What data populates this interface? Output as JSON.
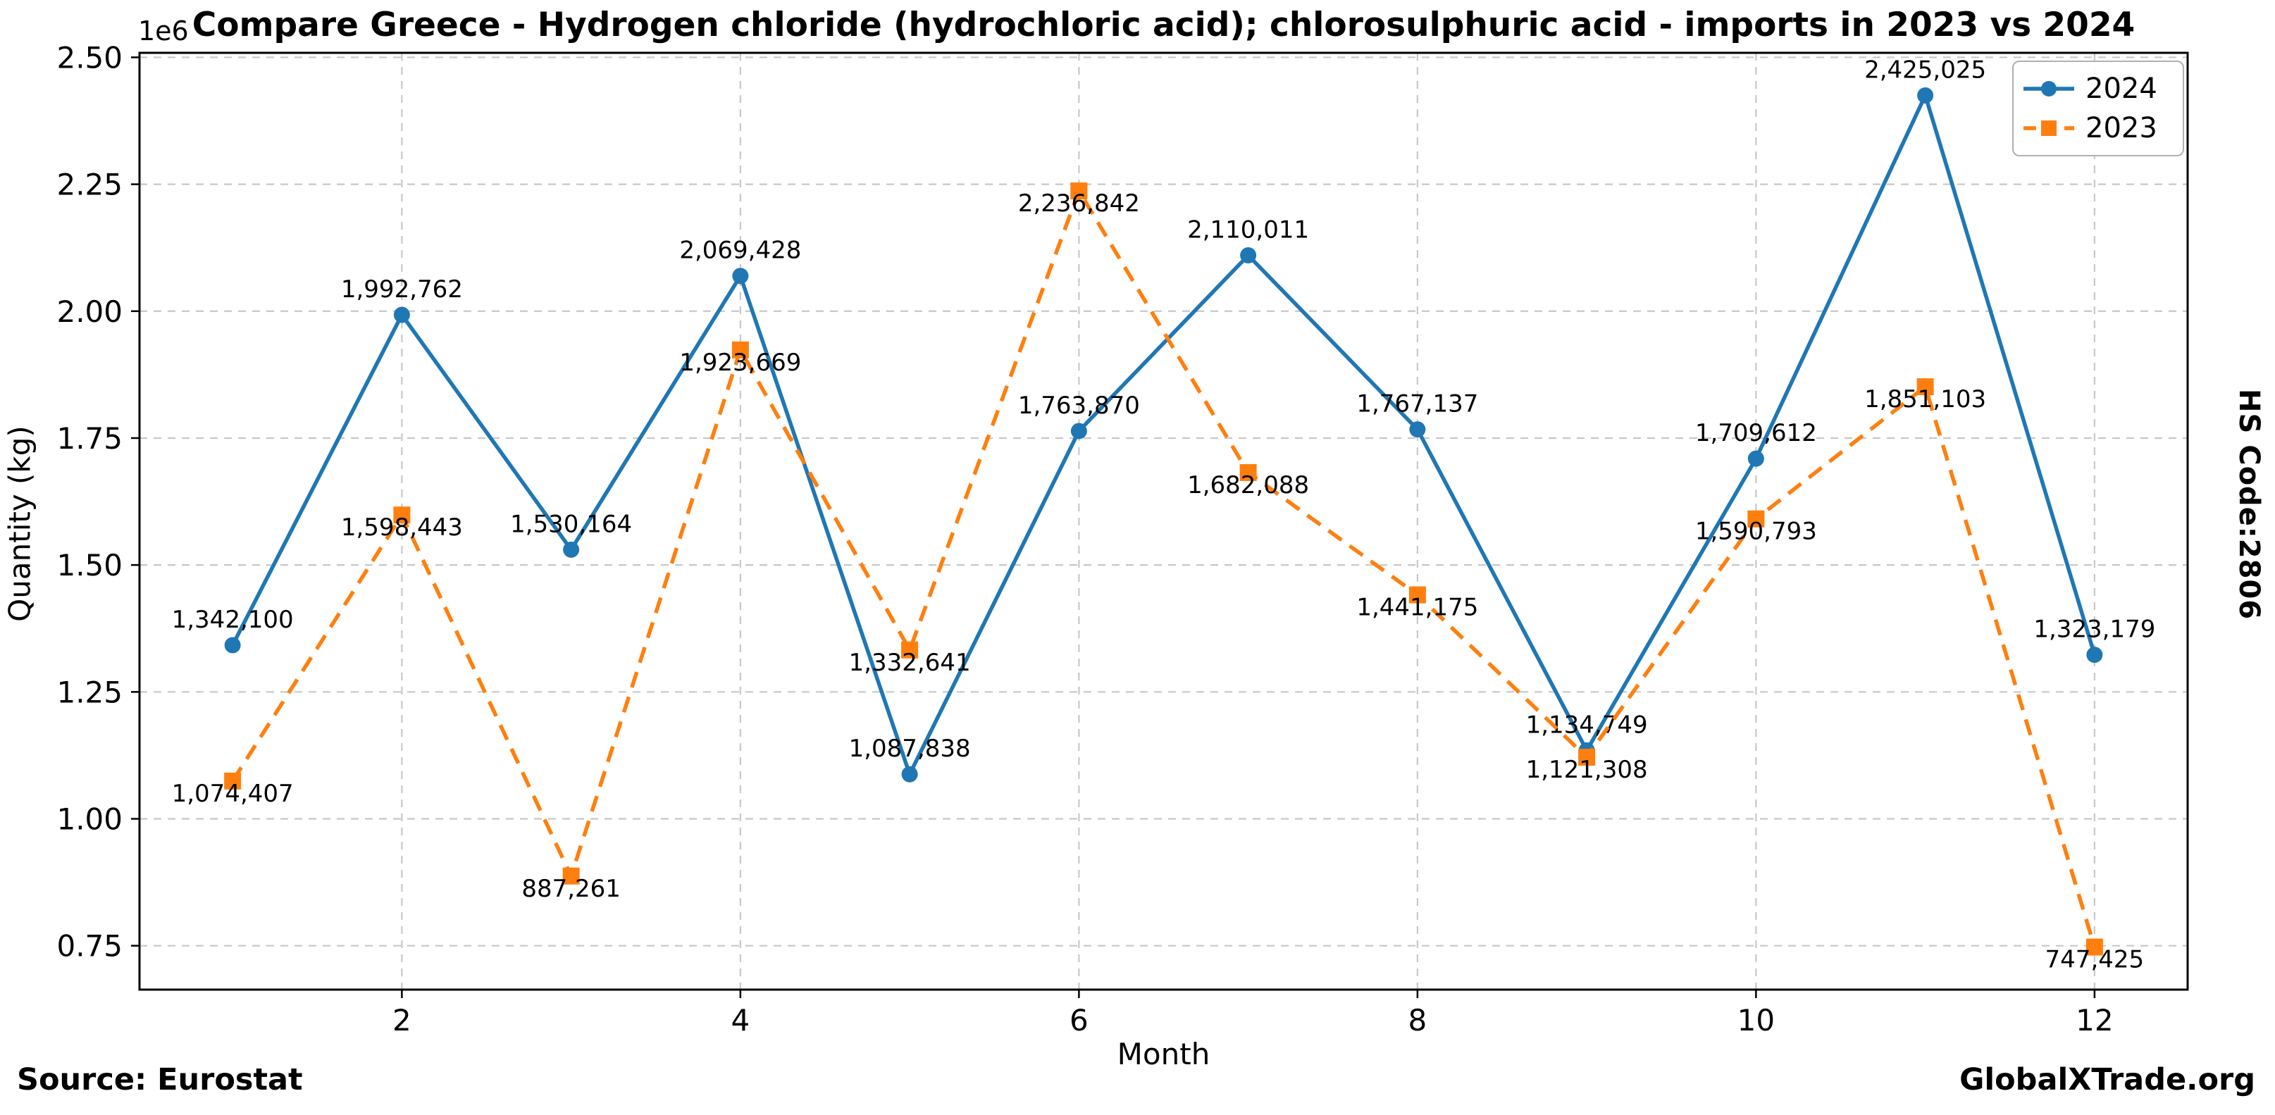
{
  "chart_data": {
    "type": "line",
    "title": "Compare Greece - Hydrogen chloride (hydrochloric acid); chlorosulphuric acid - imports in 2023 vs 2024",
    "xlabel": "Month",
    "ylabel": "Quantity (kg)",
    "y_offset_text": "1e6",
    "right_label": "HS Code:2806",
    "x": [
      1,
      2,
      3,
      4,
      5,
      6,
      7,
      8,
      9,
      10,
      11,
      12
    ],
    "series": [
      {
        "name": "2024",
        "color": "#1f77b4",
        "line_style": "solid",
        "marker": "circle",
        "values": [
          1342100,
          1992762,
          1530164,
          2069428,
          1087838,
          1763870,
          2110011,
          1767137,
          1134749,
          1709612,
          2425025,
          1323179
        ]
      },
      {
        "name": "2023",
        "color": "#ff7f0e",
        "line_style": "dashed",
        "marker": "square",
        "values": [
          1074407,
          1598443,
          887261,
          1923669,
          1332641,
          2236842,
          1682088,
          1441175,
          1121308,
          1590793,
          1851103,
          747425
        ]
      }
    ],
    "xticks": [
      2,
      4,
      6,
      8,
      10,
      12
    ],
    "yticks": [
      750000,
      1000000,
      1250000,
      1500000,
      1750000,
      2000000,
      2250000,
      2500000
    ],
    "ytick_labels": [
      "0.75",
      "1.00",
      "1.25",
      "1.50",
      "1.75",
      "2.00",
      "2.25",
      "2.50"
    ],
    "xlim": [
      0.45,
      12.55
    ],
    "ylim": [
      663545,
      2508905
    ],
    "grid": true,
    "legend_position": "upper right",
    "axis_color": "#000000",
    "grid_color": "#c8c8c8"
  },
  "footer": {
    "source": "Source: Eurostat",
    "brand": "GlobalXTrade.org"
  }
}
